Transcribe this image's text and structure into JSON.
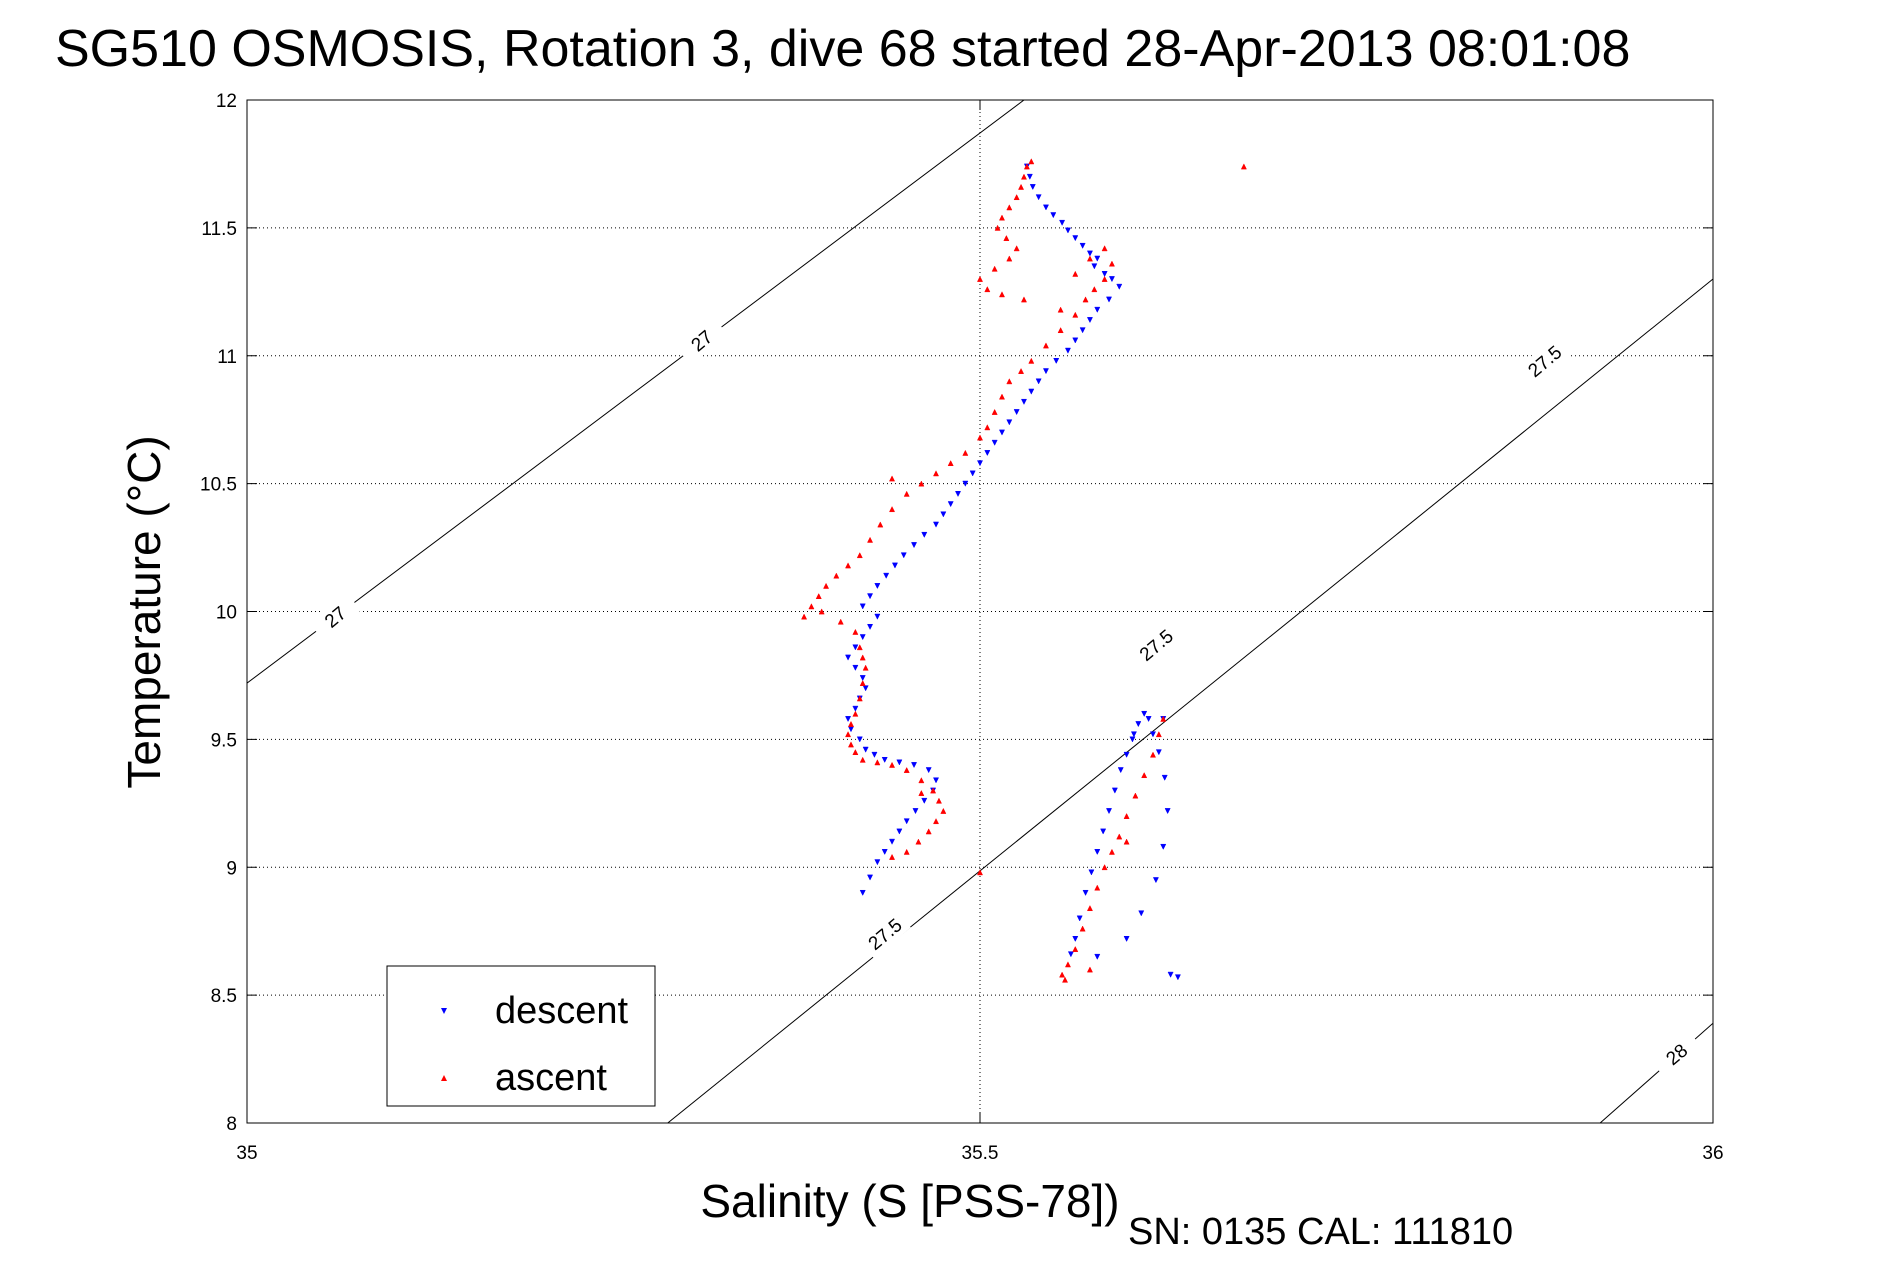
{
  "chart_data": {
    "type": "scatter",
    "title": "SG510 OSMOSIS, Rotation 3, dive 68 started 28-Apr-2013 08:01:08",
    "xlabel": "Salinity (S [PSS-78])",
    "ylabel": "Temperature (°C)",
    "xlim": [
      35,
      36
    ],
    "ylim": [
      8,
      12
    ],
    "xticks": [
      "35",
      "35.5",
      "36"
    ],
    "yticks": [
      "8",
      "8.5",
      "9",
      "9.5",
      "10",
      "10.5",
      "11",
      "11.5",
      "12"
    ],
    "grid": true,
    "legend_position": "bottom-left",
    "footer": "SN: 0135  CAL: 111810",
    "isopycnals": [
      {
        "label": "27",
        "start": [
          35.0,
          9.72
        ],
        "end": [
          35.53,
          12.0
        ]
      },
      {
        "label": "27.5",
        "start": [
          35.287,
          8.0
        ],
        "end": [
          36.0,
          11.3
        ]
      },
      {
        "label": "28",
        "start": [
          35.923,
          8.0
        ],
        "end": [
          36.0,
          8.39
        ]
      }
    ],
    "isopycnal_labels": [
      {
        "text": "27",
        "x": 35.31,
        "y": 11.06
      },
      {
        "text": "27",
        "x": 35.06,
        "y": 9.98
      },
      {
        "text": "27.5",
        "x": 35.885,
        "y": 10.98
      },
      {
        "text": "27.5",
        "x": 35.62,
        "y": 9.87
      },
      {
        "text": "27.5",
        "x": 35.435,
        "y": 8.74
      },
      {
        "text": "28",
        "x": 35.975,
        "y": 8.27
      }
    ],
    "series": [
      {
        "name": "descent",
        "color": "#0000ff",
        "marker": "triangle-down",
        "x": [
          35.532,
          35.534,
          35.536,
          35.54,
          35.545,
          35.55,
          35.556,
          35.56,
          35.565,
          35.57,
          35.575,
          35.58,
          35.578,
          35.585,
          35.59,
          35.595,
          35.588,
          35.58,
          35.575,
          35.57,
          35.565,
          35.56,
          35.552,
          35.545,
          35.54,
          35.535,
          35.53,
          35.525,
          35.52,
          35.515,
          35.51,
          35.505,
          35.5,
          35.495,
          35.49,
          35.485,
          35.48,
          35.475,
          35.47,
          35.462,
          35.455,
          35.448,
          35.442,
          35.436,
          35.43,
          35.425,
          35.42,
          35.43,
          35.425,
          35.42,
          35.415,
          35.41,
          35.415,
          35.42,
          35.422,
          35.418,
          35.415,
          35.41,
          35.412,
          35.418,
          35.422,
          35.428,
          35.435,
          35.445,
          35.455,
          35.465,
          35.47,
          35.468,
          35.462,
          35.456,
          35.45,
          35.445,
          35.44,
          35.435,
          35.43,
          35.425,
          35.42,
          35.58,
          35.6,
          35.61,
          35.62,
          35.625,
          35.628,
          35.626,
          35.622,
          35.618,
          35.615,
          35.612,
          35.608,
          35.604,
          35.6,
          35.596,
          35.592,
          35.588,
          35.584,
          35.58,
          35.576,
          35.572,
          35.568,
          35.565,
          35.562,
          35.625,
          35.63,
          35.635,
          35.605
        ],
        "y": [
          11.74,
          11.7,
          11.66,
          11.62,
          11.58,
          11.55,
          11.52,
          11.49,
          11.46,
          11.43,
          11.4,
          11.38,
          11.35,
          11.32,
          11.3,
          11.27,
          11.22,
          11.18,
          11.14,
          11.1,
          11.06,
          11.02,
          10.98,
          10.94,
          10.9,
          10.86,
          10.82,
          10.78,
          10.74,
          10.7,
          10.66,
          10.62,
          10.58,
          10.54,
          10.5,
          10.46,
          10.42,
          10.38,
          10.34,
          10.3,
          10.26,
          10.22,
          10.18,
          10.14,
          10.1,
          10.06,
          10.02,
          9.98,
          9.94,
          9.9,
          9.86,
          9.82,
          9.78,
          9.74,
          9.7,
          9.66,
          9.62,
          9.58,
          9.54,
          9.5,
          9.46,
          9.44,
          9.42,
          9.41,
          9.4,
          9.38,
          9.34,
          9.3,
          9.26,
          9.22,
          9.18,
          9.14,
          9.1,
          9.06,
          9.02,
          8.96,
          8.9,
          8.65,
          8.72,
          8.82,
          8.95,
          9.08,
          9.22,
          9.35,
          9.45,
          9.52,
          9.58,
          9.6,
          9.56,
          9.5,
          9.44,
          9.38,
          9.3,
          9.22,
          9.14,
          9.06,
          8.98,
          8.9,
          8.8,
          8.72,
          8.66,
          9.58,
          8.58,
          8.57,
          9.52
        ]
      },
      {
        "name": "ascent",
        "color": "#ff0000",
        "marker": "triangle-up",
        "x": [
          35.535,
          35.532,
          35.53,
          35.528,
          35.525,
          35.52,
          35.515,
          35.512,
          35.518,
          35.525,
          35.52,
          35.51,
          35.5,
          35.505,
          35.515,
          35.53,
          35.555,
          35.565,
          35.575,
          35.585,
          35.59,
          35.585,
          35.578,
          35.572,
          35.565,
          35.555,
          35.545,
          35.535,
          35.528,
          35.52,
          35.515,
          35.51,
          35.505,
          35.5,
          35.49,
          35.48,
          35.47,
          35.46,
          35.45,
          35.44,
          35.432,
          35.425,
          35.418,
          35.41,
          35.402,
          35.395,
          35.39,
          35.385,
          35.38,
          35.392,
          35.405,
          35.415,
          35.418,
          35.42,
          35.422,
          35.42,
          35.418,
          35.415,
          35.412,
          35.41,
          35.412,
          35.415,
          35.42,
          35.43,
          35.44,
          35.45,
          35.46,
          35.468,
          35.472,
          35.475,
          35.47,
          35.465,
          35.458,
          35.45,
          35.44,
          35.625,
          35.622,
          35.618,
          35.612,
          35.606,
          35.6,
          35.595,
          35.59,
          35.585,
          35.58,
          35.575,
          35.57,
          35.565,
          35.56,
          35.556,
          35.558,
          35.575,
          35.6,
          35.5,
          35.46,
          35.68,
          35.44
        ],
        "y": [
          11.76,
          11.74,
          11.7,
          11.66,
          11.62,
          11.58,
          11.54,
          11.5,
          11.46,
          11.42,
          11.38,
          11.34,
          11.3,
          11.26,
          11.24,
          11.22,
          11.18,
          11.32,
          11.38,
          11.42,
          11.36,
          11.3,
          11.26,
          11.22,
          11.16,
          11.1,
          11.04,
          10.98,
          10.94,
          10.9,
          10.84,
          10.78,
          10.72,
          10.68,
          10.62,
          10.58,
          10.54,
          10.5,
          10.46,
          10.4,
          10.34,
          10.28,
          10.22,
          10.18,
          10.14,
          10.1,
          10.06,
          10.02,
          9.98,
          10.0,
          9.96,
          9.92,
          9.86,
          9.82,
          9.78,
          9.72,
          9.66,
          9.6,
          9.56,
          9.52,
          9.48,
          9.45,
          9.42,
          9.41,
          9.4,
          9.38,
          9.34,
          9.3,
          9.26,
          9.22,
          9.18,
          9.14,
          9.1,
          9.06,
          9.04,
          9.58,
          9.52,
          9.44,
          9.36,
          9.28,
          9.2,
          9.12,
          9.06,
          9.0,
          8.92,
          8.84,
          8.76,
          8.68,
          8.62,
          8.58,
          8.56,
          8.6,
          9.1,
          8.98,
          9.29,
          11.74,
          10.52
        ]
      }
    ]
  }
}
